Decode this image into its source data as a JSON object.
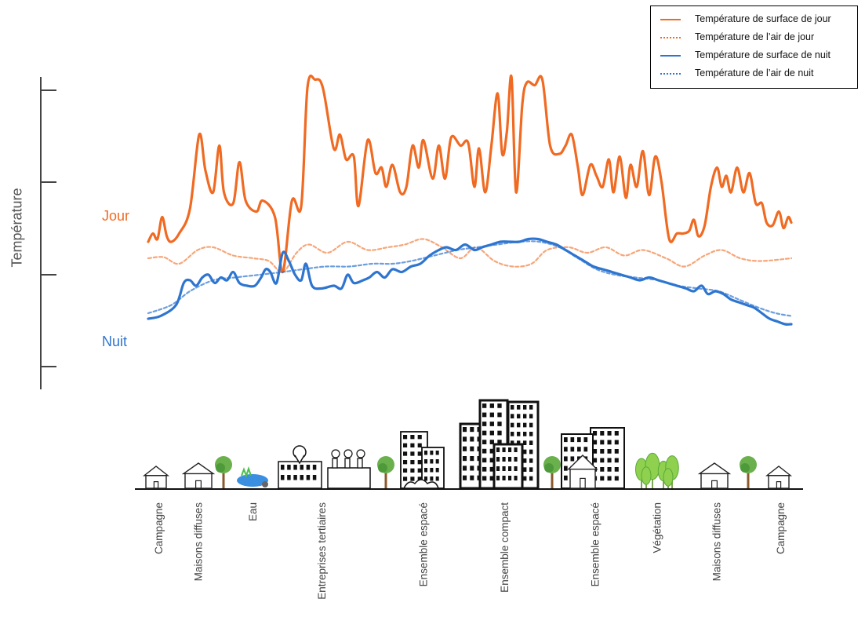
{
  "chart_data": {
    "type": "line",
    "ylabel": "Température",
    "x_categories": [
      "Campagne",
      "Maisons diffuses",
      "Eau",
      "Entreprises tertiaires",
      "Ensemble espacé",
      "Ensemble compact",
      "Ensemble espacé",
      "Végétation",
      "Maisons diffuses",
      "Campagne"
    ],
    "series_tags": {
      "day": "Jour",
      "night": "Nuit"
    },
    "y_ticks": 4,
    "grid": false,
    "legend_position": "top-right",
    "legend": [
      {
        "label": "Température de surface de jour",
        "color": "#f06a22",
        "style": "solid"
      },
      {
        "label": "Température de l’air de jour",
        "color": "#f06a22",
        "style": "dotted"
      },
      {
        "label": "Température de surface de nuit",
        "color": "#2e75d0",
        "style": "solid"
      },
      {
        "label": "Température de l’air de nuit",
        "color": "#2e75d0",
        "style": "dotted"
      }
    ],
    "series": [
      {
        "name": "Température de surface de jour",
        "color": "#f06a22",
        "points": [
          [
            0,
            0.6
          ],
          [
            0.3,
            0.75
          ],
          [
            0.6,
            0.65
          ],
          [
            0.9,
            1.05
          ],
          [
            1.2,
            0.7
          ],
          [
            1.5,
            0.6
          ],
          [
            2.0,
            0.75
          ],
          [
            2.7,
            1.2
          ],
          [
            3.3,
            2.55
          ],
          [
            3.7,
            1.9
          ],
          [
            4.2,
            1.5
          ],
          [
            4.6,
            2.35
          ],
          [
            4.9,
            1.5
          ],
          [
            5.5,
            1.3
          ],
          [
            5.9,
            2.05
          ],
          [
            6.3,
            1.35
          ],
          [
            7.0,
            1.15
          ],
          [
            7.4,
            1.35
          ],
          [
            8.2,
            1.05
          ],
          [
            8.7,
            0.05
          ],
          [
            9.3,
            1.35
          ],
          [
            9.9,
            1.25
          ],
          [
            10.3,
            3.4
          ],
          [
            10.8,
            3.55
          ],
          [
            11.3,
            3.4
          ],
          [
            12.0,
            2.3
          ],
          [
            12.4,
            2.55
          ],
          [
            12.8,
            2.1
          ],
          [
            13.3,
            2.15
          ],
          [
            13.6,
            1.25
          ],
          [
            14.2,
            2.45
          ],
          [
            14.7,
            1.85
          ],
          [
            15.1,
            1.95
          ],
          [
            15.4,
            1.6
          ],
          [
            15.8,
            2.0
          ],
          [
            16.3,
            1.5
          ],
          [
            16.7,
            1.6
          ],
          [
            17.1,
            2.35
          ],
          [
            17.5,
            1.95
          ],
          [
            17.8,
            2.45
          ],
          [
            18.4,
            1.75
          ],
          [
            18.8,
            2.35
          ],
          [
            19.2,
            1.75
          ],
          [
            19.6,
            2.5
          ],
          [
            20.2,
            2.35
          ],
          [
            20.7,
            2.4
          ],
          [
            21.1,
            1.6
          ],
          [
            21.4,
            2.3
          ],
          [
            21.8,
            1.5
          ],
          [
            22.2,
            2.35
          ],
          [
            22.6,
            3.3
          ],
          [
            22.9,
            2.2
          ],
          [
            23.2,
            2.6
          ],
          [
            23.5,
            3.6
          ],
          [
            23.8,
            1.5
          ],
          [
            24.2,
            3.1
          ],
          [
            24.5,
            3.5
          ],
          [
            25.0,
            3.45
          ],
          [
            25.5,
            3.55
          ],
          [
            26.0,
            2.35
          ],
          [
            26.6,
            2.2
          ],
          [
            27.0,
            2.35
          ],
          [
            27.4,
            2.55
          ],
          [
            27.8,
            1.95
          ],
          [
            28.1,
            1.45
          ],
          [
            28.6,
            2.0
          ],
          [
            29.0,
            1.8
          ],
          [
            29.4,
            1.6
          ],
          [
            29.8,
            2.1
          ],
          [
            30.1,
            1.5
          ],
          [
            30.5,
            2.15
          ],
          [
            30.9,
            1.4
          ],
          [
            31.2,
            2.0
          ],
          [
            31.6,
            1.6
          ],
          [
            32.0,
            2.25
          ],
          [
            32.4,
            1.45
          ],
          [
            32.8,
            2.15
          ],
          [
            33.2,
            1.7
          ],
          [
            33.7,
            0.65
          ],
          [
            34.2,
            0.75
          ],
          [
            34.6,
            0.75
          ],
          [
            35.0,
            0.8
          ],
          [
            35.3,
            1.0
          ],
          [
            35.6,
            0.7
          ],
          [
            36.0,
            0.9
          ],
          [
            36.4,
            1.6
          ],
          [
            36.8,
            1.95
          ],
          [
            37.1,
            1.6
          ],
          [
            37.4,
            1.8
          ],
          [
            37.7,
            1.5
          ],
          [
            38.1,
            1.95
          ],
          [
            38.5,
            1.5
          ],
          [
            38.9,
            1.85
          ],
          [
            39.3,
            1.3
          ],
          [
            39.7,
            1.3
          ],
          [
            40.0,
            0.95
          ],
          [
            40.4,
            0.9
          ],
          [
            40.8,
            1.15
          ],
          [
            41.1,
            0.85
          ],
          [
            41.4,
            1.05
          ],
          [
            41.6,
            0.95
          ]
        ]
      },
      {
        "name": "Température de l’air de jour",
        "color": "#f06a22",
        "points": [
          [
            0,
            0.3
          ],
          [
            1.0,
            0.32
          ],
          [
            2.0,
            0.2
          ],
          [
            3.2,
            0.45
          ],
          [
            4.2,
            0.5
          ],
          [
            5.5,
            0.35
          ],
          [
            6.8,
            0.3
          ],
          [
            7.8,
            0.25
          ],
          [
            8.7,
            0.05
          ],
          [
            9.6,
            0.4
          ],
          [
            10.4,
            0.55
          ],
          [
            11.6,
            0.4
          ],
          [
            12.9,
            0.6
          ],
          [
            14.2,
            0.45
          ],
          [
            15.5,
            0.5
          ],
          [
            16.6,
            0.55
          ],
          [
            17.8,
            0.65
          ],
          [
            19.0,
            0.5
          ],
          [
            20.2,
            0.3
          ],
          [
            21.2,
            0.5
          ],
          [
            22.4,
            0.25
          ],
          [
            23.6,
            0.15
          ],
          [
            24.8,
            0.2
          ],
          [
            25.8,
            0.45
          ],
          [
            27.2,
            0.5
          ],
          [
            28.4,
            0.4
          ],
          [
            29.6,
            0.5
          ],
          [
            30.8,
            0.35
          ],
          [
            32.0,
            0.45
          ],
          [
            33.5,
            0.3
          ],
          [
            34.7,
            0.15
          ],
          [
            36.0,
            0.35
          ],
          [
            37.1,
            0.45
          ],
          [
            38.3,
            0.3
          ],
          [
            39.6,
            0.25
          ],
          [
            41.6,
            0.3
          ]
        ]
      },
      {
        "name": "Température de surface de nuit",
        "color": "#2e75d0",
        "points": [
          [
            0,
            -0.8
          ],
          [
            0.8,
            -0.75
          ],
          [
            1.8,
            -0.55
          ],
          [
            2.3,
            -0.15
          ],
          [
            2.7,
            -0.1
          ],
          [
            3.1,
            -0.2
          ],
          [
            3.5,
            -0.05
          ],
          [
            3.9,
            0.0
          ],
          [
            4.3,
            -0.15
          ],
          [
            4.7,
            -0.05
          ],
          [
            5.1,
            -0.1
          ],
          [
            5.5,
            0.05
          ],
          [
            5.9,
            -0.15
          ],
          [
            6.4,
            -0.2
          ],
          [
            6.9,
            -0.2
          ],
          [
            7.3,
            -0.05
          ],
          [
            7.6,
            0.1
          ],
          [
            7.9,
            0.05
          ],
          [
            8.3,
            -0.15
          ],
          [
            8.7,
            0.4
          ],
          [
            9.1,
            0.25
          ],
          [
            9.5,
            0.0
          ],
          [
            9.9,
            -0.1
          ],
          [
            10.2,
            0.2
          ],
          [
            10.6,
            -0.2
          ],
          [
            11.2,
            -0.25
          ],
          [
            12.0,
            -0.2
          ],
          [
            12.5,
            -0.25
          ],
          [
            12.9,
            0.0
          ],
          [
            13.3,
            -0.15
          ],
          [
            13.9,
            -0.1
          ],
          [
            14.3,
            -0.05
          ],
          [
            14.8,
            0.05
          ],
          [
            15.3,
            -0.05
          ],
          [
            15.8,
            0.1
          ],
          [
            16.4,
            0.05
          ],
          [
            17.0,
            0.15
          ],
          [
            17.6,
            0.2
          ],
          [
            18.2,
            0.35
          ],
          [
            18.8,
            0.45
          ],
          [
            19.3,
            0.5
          ],
          [
            19.9,
            0.45
          ],
          [
            20.5,
            0.55
          ],
          [
            21.1,
            0.45
          ],
          [
            21.6,
            0.5
          ],
          [
            22.2,
            0.55
          ],
          [
            22.8,
            0.6
          ],
          [
            23.4,
            0.6
          ],
          [
            24.0,
            0.6
          ],
          [
            24.6,
            0.65
          ],
          [
            25.2,
            0.65
          ],
          [
            25.8,
            0.6
          ],
          [
            26.4,
            0.55
          ],
          [
            27.0,
            0.45
          ],
          [
            27.6,
            0.35
          ],
          [
            28.2,
            0.25
          ],
          [
            28.8,
            0.15
          ],
          [
            29.4,
            0.1
          ],
          [
            30.0,
            0.05
          ],
          [
            30.6,
            0.0
          ],
          [
            31.2,
            -0.05
          ],
          [
            31.8,
            -0.1
          ],
          [
            32.4,
            -0.05
          ],
          [
            33.0,
            -0.1
          ],
          [
            33.6,
            -0.15
          ],
          [
            34.2,
            -0.2
          ],
          [
            34.8,
            -0.25
          ],
          [
            35.3,
            -0.3
          ],
          [
            35.8,
            -0.2
          ],
          [
            36.2,
            -0.35
          ],
          [
            36.7,
            -0.3
          ],
          [
            37.2,
            -0.35
          ],
          [
            37.7,
            -0.45
          ],
          [
            38.2,
            -0.5
          ],
          [
            38.7,
            -0.55
          ],
          [
            39.2,
            -0.6
          ],
          [
            39.7,
            -0.7
          ],
          [
            40.2,
            -0.8
          ],
          [
            40.7,
            -0.85
          ],
          [
            41.2,
            -0.9
          ],
          [
            41.6,
            -0.9
          ]
        ]
      },
      {
        "name": "Température de l’air de nuit",
        "color": "#2e75d0",
        "points": [
          [
            0,
            -0.7
          ],
          [
            1.5,
            -0.55
          ],
          [
            2.7,
            -0.3
          ],
          [
            4.2,
            -0.1
          ],
          [
            5.6,
            -0.05
          ],
          [
            7.2,
            0.0
          ],
          [
            8.7,
            0.05
          ],
          [
            10.0,
            0.1
          ],
          [
            11.5,
            0.15
          ],
          [
            13.0,
            0.15
          ],
          [
            14.5,
            0.2
          ],
          [
            15.8,
            0.2
          ],
          [
            17.0,
            0.25
          ],
          [
            18.5,
            0.35
          ],
          [
            20.0,
            0.45
          ],
          [
            21.3,
            0.5
          ],
          [
            22.6,
            0.55
          ],
          [
            24.0,
            0.6
          ],
          [
            25.3,
            0.6
          ],
          [
            26.6,
            0.5
          ],
          [
            27.8,
            0.3
          ],
          [
            29.0,
            0.1
          ],
          [
            30.2,
            0.0
          ],
          [
            31.5,
            -0.05
          ],
          [
            33.0,
            -0.1
          ],
          [
            34.3,
            -0.2
          ],
          [
            35.6,
            -0.25
          ],
          [
            36.9,
            -0.3
          ],
          [
            38.2,
            -0.45
          ],
          [
            39.5,
            -0.6
          ],
          [
            40.6,
            -0.7
          ],
          [
            41.6,
            -0.75
          ]
        ]
      }
    ]
  }
}
